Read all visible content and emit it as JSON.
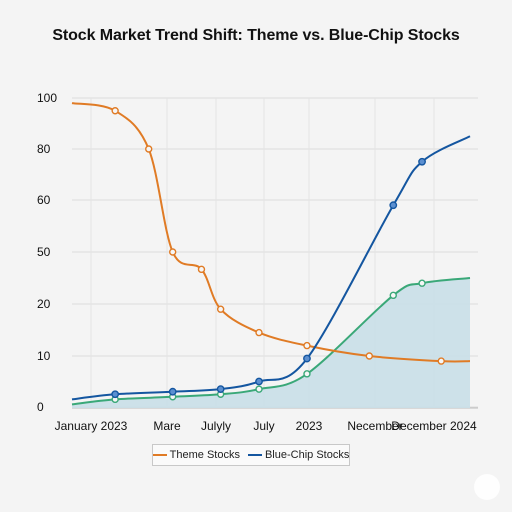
{
  "chart_data": {
    "type": "line",
    "title": "Stock Market Trend Shift: Theme vs. Blue-Chip Stocks",
    "xlabel": "",
    "ylabel": "",
    "categories": [
      "January 2023",
      "Mare",
      "Julyly",
      "July",
      "2023",
      "Necember",
      "December 2024"
    ],
    "y_ticks": [
      0,
      10,
      20,
      50,
      60,
      80,
      100
    ],
    "grid": true,
    "legend_position": "bottom-center",
    "series": [
      {
        "name": "Theme Stocks",
        "color": "#e07b25",
        "points": [
          [
            0,
            98
          ],
          [
            0.9,
            95
          ],
          [
            1.6,
            80
          ],
          [
            2.1,
            50
          ],
          [
            2.7,
            40
          ],
          [
            3.1,
            19
          ],
          [
            3.9,
            14.5
          ],
          [
            4.9,
            12
          ],
          [
            6.2,
            10
          ],
          [
            7.7,
            9
          ],
          [
            8.3,
            9
          ]
        ]
      },
      {
        "name": "Blue-Chip Stocks",
        "color": "#1456a0",
        "points": [
          [
            0,
            1.5
          ],
          [
            0.9,
            2.5
          ],
          [
            2.1,
            3
          ],
          [
            3.1,
            3.5
          ],
          [
            3.9,
            5
          ],
          [
            4.9,
            9.5
          ],
          [
            6.7,
            59
          ],
          [
            7.3,
            75
          ],
          [
            8.3,
            85
          ]
        ]
      },
      {
        "name": "",
        "color": "#3aa878",
        "fill": "#c9dfe8",
        "points": [
          [
            0,
            0.5
          ],
          [
            0.9,
            1.5
          ],
          [
            2.1,
            2
          ],
          [
            3.1,
            2.5
          ],
          [
            3.9,
            3.5
          ],
          [
            4.9,
            6.5
          ],
          [
            6.7,
            25
          ],
          [
            7.3,
            32
          ],
          [
            8.3,
            35
          ]
        ]
      }
    ]
  }
}
